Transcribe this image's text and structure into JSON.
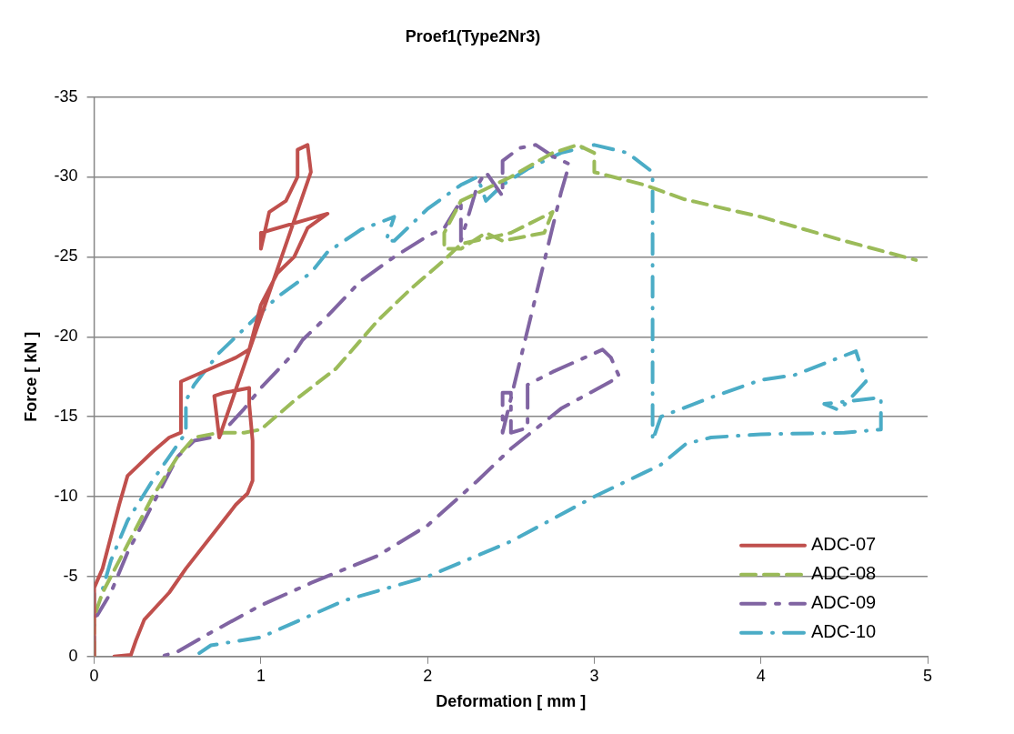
{
  "chart_data": {
    "type": "line",
    "title": "Proef1(Type2Nr3)",
    "xlabel": "Deformation [ mm ]",
    "ylabel": "Force [ kN ]",
    "xlim": [
      0,
      5
    ],
    "xticks": [
      0,
      1,
      2,
      3,
      4,
      5
    ],
    "ylim": [
      0,
      -35
    ],
    "yticks": [
      0,
      -5,
      -10,
      -15,
      -20,
      -25,
      -30,
      -35
    ],
    "grid": "y",
    "legend": "bottom right",
    "marker": "none",
    "series": [
      {
        "name": "ADC-07",
        "color": "#c0504d",
        "line_style": "solid",
        "x": [
          0,
          0,
          0.05,
          0.1,
          0.15,
          0.2,
          0.27,
          0.35,
          0.45,
          0.52,
          0.52,
          0.85,
          0.93,
          1.0,
          1.1,
          1.2,
          1.28,
          1.4,
          1.0,
          1.0,
          1.05,
          1.15,
          1.22,
          1.22,
          1.28,
          1.3,
          0.75,
          0.72,
          0.78,
          0.93,
          0.93,
          0.95,
          0.95,
          0.92,
          0.85,
          0.7,
          0.55,
          0.45,
          0.3,
          0.25,
          0.22,
          0.12
        ],
        "values": [
          0,
          -4.3,
          -5.5,
          -7.5,
          -9.5,
          -11.3,
          -12,
          -12.8,
          -13.7,
          -14,
          -17.2,
          -18.7,
          -19.2,
          -22,
          -24,
          -25,
          -26.8,
          -27.7,
          -26.5,
          -25.5,
          -27.8,
          -28.5,
          -30,
          -31.7,
          -32,
          -30.3,
          -13.7,
          -16.3,
          -16.5,
          -16.8,
          -15.8,
          -13.5,
          -11,
          -10.2,
          -9.5,
          -7.5,
          -5.5,
          -4,
          -2.3,
          -1,
          -0.1,
          0
        ]
      },
      {
        "name": "ADC-08",
        "color": "#9bbb59",
        "line_style": "dashed",
        "x": [
          0,
          0,
          0.05,
          0.2,
          0.35,
          0.5,
          0.6,
          0.75,
          0.9,
          1.0,
          1.2,
          1.45,
          1.7,
          1.9,
          2.1,
          2.2,
          2.5,
          2.75,
          2.7,
          2.45,
          2.35,
          2.2,
          2.1,
          2.1,
          2.2,
          2.3,
          2.5,
          2.75,
          2.9,
          3.0,
          3.0,
          3.3,
          3.54,
          4.0,
          4.5,
          4.93
        ],
        "values": [
          0,
          -2.5,
          -4,
          -7,
          -10,
          -12.5,
          -13.7,
          -14,
          -14,
          -14.2,
          -16,
          -18,
          -21,
          -23,
          -24.8,
          -25.8,
          -26.5,
          -27.8,
          -26.5,
          -26,
          -26.5,
          -25.5,
          -25.5,
          -26.5,
          -28.5,
          -29,
          -30,
          -31.5,
          -32,
          -31.5,
          -30.3,
          -29.5,
          -28.6,
          -27.5,
          -26,
          -24.8
        ]
      },
      {
        "name": "ADC-09",
        "color": "#8064a2",
        "line_style": "dashdot",
        "x": [
          0,
          0.02,
          0.1,
          0.2,
          0.35,
          0.5,
          0.6,
          0.75,
          0.9,
          1.0,
          1.2,
          1.25,
          1.4,
          1.6,
          1.8,
          2.0,
          2.1,
          2.2,
          2.2,
          2.3,
          2.35,
          2.45,
          2.45,
          2.55,
          2.65,
          2.75,
          2.85,
          2.8,
          2.45,
          2.45,
          2.5,
          2.5,
          2.6,
          2.6,
          2.75,
          3.05,
          3.1,
          3.15,
          2.8,
          2.5,
          2.3,
          2.0,
          1.7,
          1.3,
          1.0,
          0.7,
          0.5,
          0.4
        ],
        "values": [
          -2.5,
          -2.6,
          -4,
          -6.5,
          -9.5,
          -12.5,
          -13.5,
          -13.8,
          -15.5,
          -16.8,
          -19,
          -19.8,
          -21.3,
          -23.5,
          -25,
          -26.3,
          -26.8,
          -28.5,
          -26,
          -29.5,
          -30.3,
          -28.8,
          -31,
          -31.8,
          -32,
          -31.3,
          -30.8,
          -29,
          -14,
          -16.5,
          -16.5,
          -14,
          -14.3,
          -17,
          -17.8,
          -19.2,
          -18.7,
          -17.5,
          -15.5,
          -13,
          -11,
          -8.2,
          -6.3,
          -4.6,
          -3.2,
          -1.5,
          -0.3,
          0
        ]
      },
      {
        "name": "ADC-10",
        "color": "#4bacc6",
        "line_style": "longdashdot",
        "x": [
          0,
          0,
          0.05,
          0.1,
          0.2,
          0.35,
          0.45,
          0.55,
          0.55,
          0.6,
          0.75,
          0.9,
          1.0,
          1.1,
          1.3,
          1.4,
          1.6,
          1.8,
          1.75,
          1.8,
          2.0,
          2.2,
          2.3,
          2.35,
          2.45,
          2.6,
          2.8,
          3.0,
          3.2,
          3.35,
          3.35,
          3.4,
          3.5,
          3.7,
          4.0,
          4.2,
          4.57,
          4.63,
          4.47,
          4.38,
          4.72,
          4.72,
          4.5,
          4.0,
          3.7,
          3.55,
          3.4,
          3.3,
          3.0,
          2.5,
          2.0,
          1.5,
          1.0,
          0.7,
          0.6
        ],
        "values": [
          0,
          -4,
          -4.2,
          -6,
          -8.5,
          -11,
          -12.5,
          -14,
          -16,
          -17,
          -19,
          -20.5,
          -21.5,
          -22.5,
          -24,
          -25.3,
          -26.7,
          -27.5,
          -26,
          -26,
          -28,
          -29.5,
          -30,
          -28.5,
          -29.5,
          -30.5,
          -31.5,
          -32,
          -31.5,
          -30.3,
          -13.5,
          -15,
          -15.4,
          -16.2,
          -17.3,
          -17.6,
          -19.1,
          -17.2,
          -15.4,
          -15.8,
          -16.2,
          -14.2,
          -14,
          -13.9,
          -13.7,
          -13.3,
          -12,
          -11.5,
          -10,
          -7.2,
          -5,
          -3.5,
          -1.2,
          -0.7,
          0
        ]
      }
    ]
  }
}
